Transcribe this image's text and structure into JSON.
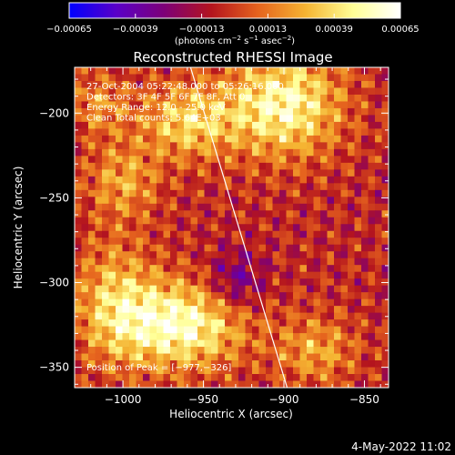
{
  "chart_data": {
    "type": "heatmap",
    "title": "Reconstructed RHESSI Image",
    "xlabel": "Heliocentric X (arcsec)",
    "ylabel": "Heliocentric Y (arcsec)",
    "xlim": [
      -1030,
      -835
    ],
    "ylim": [
      -362,
      -173
    ],
    "x_ticks": [
      {
        "value": -1000,
        "label": "−1000"
      },
      {
        "value": -950,
        "label": "−950"
      },
      {
        "value": -900,
        "label": "−900"
      },
      {
        "value": -850,
        "label": "−850"
      }
    ],
    "y_ticks": [
      {
        "value": -200,
        "label": "−200"
      },
      {
        "value": -250,
        "label": "−250"
      },
      {
        "value": -300,
        "label": "−300"
      },
      {
        "value": -350,
        "label": "−350"
      }
    ],
    "colorbar": {
      "min": -0.00065,
      "max": 0.00065,
      "ticks": [
        {
          "value": -0.00065,
          "label": "−0.00065"
        },
        {
          "value": -0.00039,
          "label": "−0.00039"
        },
        {
          "value": -0.00013,
          "label": "−0.00013"
        },
        {
          "value": 0.00013,
          "label": "0.00013"
        },
        {
          "value": 0.00039,
          "label": "0.00039"
        },
        {
          "value": 0.00065,
          "label": "0.00065"
        }
      ],
      "units": {
        "base": "(photons cm",
        "exp1": "−2",
        "mid1": " s",
        "exp2": "−1",
        "mid2": " asec",
        "exp3": "−2",
        "end": ")"
      },
      "colors": [
        "#0000ff",
        "#5a00c8",
        "#7d0078",
        "#b4141e",
        "#e6641e",
        "#f5b432",
        "#ffff96",
        "#ffffff"
      ]
    },
    "annotations": [
      "27-Oct-2004 05:22:48.000 to 05:26:16.000",
      "Detectors: 3F 4F 5F 6F 7F 8F, Att 0",
      "Energy Range: 12.0 - 25.0 keV",
      "Clean     Total counts: 5.64E+03"
    ],
    "peak_label": "Position of Peak = [−977,−326]",
    "peak": {
      "x": -977,
      "y": -326
    },
    "limb_line": [
      {
        "x": -958,
        "y": -173
      },
      {
        "x": -898,
        "y": -362
      }
    ],
    "hot_regions": [
      {
        "x": -900,
        "y": -195,
        "sx": 35,
        "sy": 30,
        "amp": 0.00058
      },
      {
        "x": -960,
        "y": -205,
        "sx": 30,
        "sy": 22,
        "amp": 0.00042
      },
      {
        "x": -965,
        "y": -325,
        "sx": 40,
        "sy": 25,
        "amp": 0.00062
      },
      {
        "x": -1005,
        "y": -310,
        "sx": 25,
        "sy": 35,
        "amp": 0.00035
      },
      {
        "x": -1000,
        "y": -240,
        "sx": 22,
        "sy": 22,
        "amp": 0.0003
      },
      {
        "x": -1015,
        "y": -195,
        "sx": 18,
        "sy": 18,
        "amp": 0.00025
      },
      {
        "x": -880,
        "y": -340,
        "sx": 25,
        "sy": 20,
        "amp": 0.0003
      },
      {
        "x": -930,
        "y": -300,
        "sx": 18,
        "sy": 18,
        "amp": -0.0003
      }
    ]
  },
  "footer": {
    "date": "4-May-2022 11:02"
  }
}
